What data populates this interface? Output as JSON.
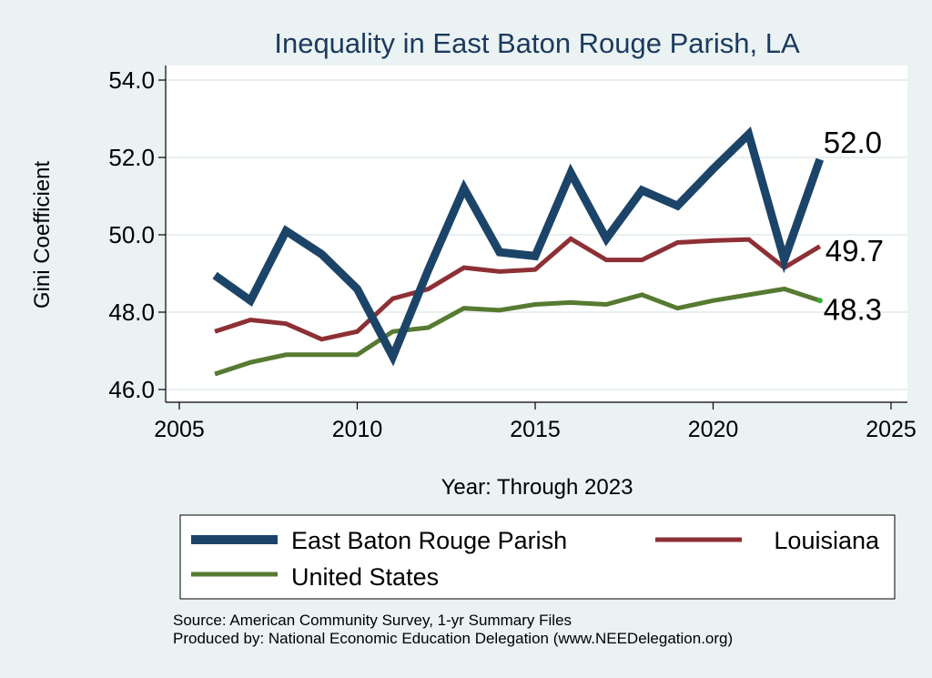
{
  "chart_data": {
    "type": "line",
    "title": "Inequality in East Baton Rouge Parish, LA",
    "xlabel": "Year: Through 2023",
    "ylabel": "Gini Coefficient",
    "xlim": [
      2005,
      2025
    ],
    "ylim": [
      46,
      54
    ],
    "xticks": [
      "2005",
      "2010",
      "2015",
      "2020",
      "2025"
    ],
    "yticks": [
      "46.0",
      "48.0",
      "50.0",
      "52.0",
      "54.0"
    ],
    "grid": true,
    "legend_position": "bottom",
    "x": [
      2006,
      2007,
      2008,
      2009,
      2010,
      2011,
      2012,
      2013,
      2014,
      2015,
      2016,
      2017,
      2018,
      2019,
      2020,
      2021,
      2022,
      2023
    ],
    "series": [
      {
        "name": "East Baton Rouge Parish",
        "color": "#1b4468",
        "values": [
          48.95,
          48.3,
          50.1,
          49.5,
          48.6,
          46.85,
          49.1,
          51.2,
          49.55,
          49.45,
          51.6,
          49.9,
          51.15,
          50.75,
          51.7,
          52.6,
          49.35,
          51.95
        ],
        "end_label": "52.0"
      },
      {
        "name": "Louisiana",
        "color": "#8d3035",
        "values": [
          47.5,
          47.8,
          47.7,
          47.3,
          47.5,
          48.35,
          48.6,
          49.15,
          49.05,
          49.1,
          49.9,
          49.35,
          49.35,
          49.8,
          49.85,
          49.88,
          49.15,
          49.7
        ],
        "end_label": "49.7"
      },
      {
        "name": "United States",
        "color": "#567a31",
        "values": [
          46.4,
          46.7,
          46.9,
          46.9,
          46.9,
          47.5,
          47.6,
          48.1,
          48.05,
          48.2,
          48.25,
          48.2,
          48.45,
          48.1,
          48.3,
          48.45,
          48.6,
          48.3
        ],
        "end_label": "48.3"
      }
    ]
  },
  "footer": {
    "source": "Source: American Community Survey, 1-yr Summary Files",
    "produced_by": "Produced by: National Economic Education Delegation (www.NEEDelegation.org)"
  }
}
